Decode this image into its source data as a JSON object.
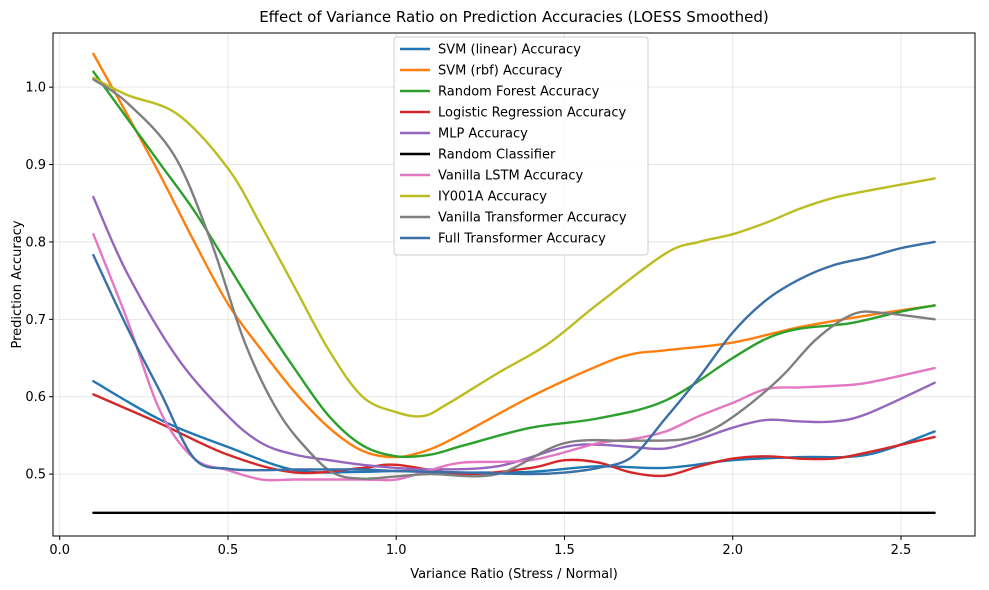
{
  "chart_data": {
    "type": "line",
    "title": "Effect of Variance Ratio on Prediction Accuracies (LOESS Smoothed)",
    "xlabel": "Variance Ratio (Stress / Normal)",
    "ylabel": "Prediction Accuracy",
    "xlim": [
      -0.02,
      2.72
    ],
    "ylim": [
      0.42,
      1.07
    ],
    "xticks": [
      0.0,
      0.5,
      1.0,
      1.5,
      2.0,
      2.5
    ],
    "xtick_labels": [
      "0.0",
      "0.5",
      "1.0",
      "1.5",
      "2.0",
      "2.5"
    ],
    "yticks": [
      0.5,
      0.6,
      0.7,
      0.8,
      0.9,
      1.0
    ],
    "ytick_labels": [
      "0.5",
      "0.6",
      "0.7",
      "0.8",
      "0.9",
      "1.0"
    ],
    "grid": true,
    "legend_position": "top-center",
    "series": [
      {
        "name": "SVM (linear) Accuracy",
        "color": "#1f77b4",
        "x": [
          0.1,
          0.3,
          0.5,
          0.7,
          0.9,
          1.0,
          1.2,
          1.4,
          1.6,
          1.8,
          2.0,
          2.2,
          2.4,
          2.6
        ],
        "y": [
          0.62,
          0.57,
          0.535,
          0.505,
          0.503,
          0.504,
          0.502,
          0.503,
          0.51,
          0.508,
          0.518,
          0.522,
          0.525,
          0.555
        ]
      },
      {
        "name": "SVM (rbf) Accuracy",
        "color": "#ff7f0e",
        "x": [
          0.1,
          0.2,
          0.3,
          0.4,
          0.5,
          0.6,
          0.7,
          0.8,
          0.9,
          1.0,
          1.1,
          1.2,
          1.4,
          1.6,
          1.7,
          1.8,
          2.0,
          2.2,
          2.4,
          2.6
        ],
        "y": [
          1.043,
          0.965,
          0.885,
          0.8,
          0.72,
          0.66,
          0.605,
          0.56,
          0.53,
          0.522,
          0.532,
          0.553,
          0.6,
          0.64,
          0.655,
          0.66,
          0.67,
          0.69,
          0.705,
          0.718
        ]
      },
      {
        "name": "Random Forest Accuracy",
        "color": "#2ca02c",
        "x": [
          0.1,
          0.2,
          0.3,
          0.4,
          0.5,
          0.6,
          0.7,
          0.8,
          0.9,
          1.0,
          1.1,
          1.2,
          1.4,
          1.6,
          1.8,
          2.0,
          2.1,
          2.2,
          2.35,
          2.5,
          2.6
        ],
        "y": [
          1.02,
          0.96,
          0.9,
          0.84,
          0.77,
          0.7,
          0.635,
          0.575,
          0.537,
          0.523,
          0.525,
          0.537,
          0.56,
          0.572,
          0.595,
          0.65,
          0.675,
          0.688,
          0.695,
          0.71,
          0.718
        ]
      },
      {
        "name": "Logistic Regression Accuracy",
        "color": "#d62728",
        "x": [
          0.1,
          0.3,
          0.5,
          0.7,
          0.9,
          1.0,
          1.2,
          1.4,
          1.5,
          1.6,
          1.7,
          1.8,
          1.9,
          2.0,
          2.1,
          2.2,
          2.3,
          2.4,
          2.6
        ],
        "y": [
          0.603,
          0.565,
          0.525,
          0.502,
          0.508,
          0.512,
          0.5,
          0.508,
          0.518,
          0.515,
          0.502,
          0.498,
          0.51,
          0.52,
          0.523,
          0.52,
          0.52,
          0.528,
          0.548
        ]
      },
      {
        "name": "MLP Accuracy",
        "color": "#9467bd",
        "x": [
          0.1,
          0.2,
          0.35,
          0.5,
          0.6,
          0.7,
          0.8,
          0.9,
          1.0,
          1.1,
          1.3,
          1.5,
          1.6,
          1.7,
          1.8,
          1.9,
          2.0,
          2.1,
          2.2,
          2.3,
          2.4,
          2.6
        ],
        "y": [
          0.858,
          0.76,
          0.65,
          0.575,
          0.54,
          0.525,
          0.518,
          0.512,
          0.508,
          0.506,
          0.51,
          0.535,
          0.538,
          0.535,
          0.533,
          0.545,
          0.56,
          0.57,
          0.568,
          0.568,
          0.578,
          0.618
        ]
      },
      {
        "name": "Random Classifier",
        "color": "#000000",
        "x": [
          0.1,
          2.6
        ],
        "y": [
          0.45,
          0.45
        ]
      },
      {
        "name": "Vanilla LSTM Accuracy",
        "color": "#e377c2",
        "x": [
          0.1,
          0.2,
          0.3,
          0.4,
          0.5,
          0.6,
          0.7,
          0.8,
          0.9,
          1.0,
          1.1,
          1.2,
          1.4,
          1.6,
          1.7,
          1.8,
          1.9,
          2.0,
          2.1,
          2.2,
          2.3,
          2.4,
          2.6
        ],
        "y": [
          0.81,
          0.7,
          0.58,
          0.52,
          0.505,
          0.493,
          0.493,
          0.493,
          0.493,
          0.493,
          0.505,
          0.515,
          0.518,
          0.54,
          0.545,
          0.555,
          0.575,
          0.592,
          0.61,
          0.612,
          0.614,
          0.618,
          0.637
        ]
      },
      {
        "name": "IY001A Accuracy",
        "color": "#bcbd22",
        "x": [
          0.1,
          0.2,
          0.35,
          0.5,
          0.6,
          0.7,
          0.8,
          0.9,
          1.0,
          1.08,
          1.15,
          1.3,
          1.45,
          1.6,
          1.8,
          1.9,
          2.0,
          2.1,
          2.2,
          2.3,
          2.4,
          2.6
        ],
        "y": [
          1.012,
          0.99,
          0.965,
          0.895,
          0.82,
          0.74,
          0.66,
          0.6,
          0.58,
          0.575,
          0.59,
          0.63,
          0.668,
          0.72,
          0.785,
          0.8,
          0.81,
          0.825,
          0.843,
          0.857,
          0.866,
          0.882
        ]
      },
      {
        "name": "Vanilla Transformer Accuracy",
        "color": "#7f7f7f",
        "x": [
          0.1,
          0.2,
          0.34,
          0.45,
          0.55,
          0.65,
          0.75,
          0.82,
          0.9,
          1.0,
          1.1,
          1.3,
          1.5,
          1.7,
          1.85,
          1.95,
          2.05,
          2.15,
          2.25,
          2.36,
          2.45,
          2.6
        ],
        "y": [
          1.01,
          0.98,
          0.912,
          0.8,
          0.67,
          0.58,
          0.525,
          0.5,
          0.494,
          0.497,
          0.5,
          0.5,
          0.54,
          0.543,
          0.545,
          0.56,
          0.59,
          0.628,
          0.675,
          0.707,
          0.708,
          0.7
        ]
      },
      {
        "name": "Full Transformer Accuracy",
        "color": "#3a6fa8",
        "x": [
          0.1,
          0.2,
          0.3,
          0.4,
          0.5,
          0.6,
          0.7,
          0.8,
          0.9,
          1.0,
          1.1,
          1.2,
          1.4,
          1.5,
          1.6,
          1.7,
          1.8,
          1.9,
          2.0,
          2.1,
          2.2,
          2.3,
          2.4,
          2.5,
          2.6
        ],
        "y": [
          0.783,
          0.69,
          0.605,
          0.52,
          0.507,
          0.505,
          0.506,
          0.506,
          0.506,
          0.504,
          0.503,
          0.502,
          0.5,
          0.502,
          0.508,
          0.522,
          0.572,
          0.625,
          0.683,
          0.725,
          0.752,
          0.77,
          0.78,
          0.792,
          0.8
        ]
      }
    ]
  }
}
